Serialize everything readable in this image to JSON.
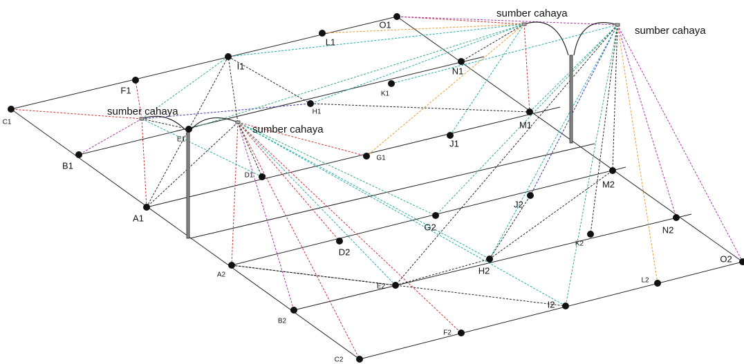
{
  "nodes": [
    {
      "label": "C1"
    },
    {
      "label": "F1"
    },
    {
      "label": "I1"
    },
    {
      "label": "L1"
    },
    {
      "label": "O1"
    },
    {
      "label": "B1"
    },
    {
      "label": "E1"
    },
    {
      "label": "H1"
    },
    {
      "label": "K1"
    },
    {
      "label": "N1"
    },
    {
      "label": "A1"
    },
    {
      "label": "D1"
    },
    {
      "label": "G1"
    },
    {
      "label": "J1"
    },
    {
      "label": "M1"
    },
    {
      "label": "A2"
    },
    {
      "label": "D2"
    },
    {
      "label": "G2"
    },
    {
      "label": "J2"
    },
    {
      "label": "M2"
    },
    {
      "label": "B2"
    },
    {
      "label": "E2"
    },
    {
      "label": "H2"
    },
    {
      "label": "K2"
    },
    {
      "label": "N2"
    },
    {
      "label": "C2"
    },
    {
      "label": "F2"
    },
    {
      "label": "I2"
    },
    {
      "label": "L2"
    },
    {
      "label": "O2"
    }
  ],
  "light_labels": [
    "sumber cahaya",
    "sumber cahaya",
    "sumber cahaya",
    "sumber cahaya"
  ]
}
